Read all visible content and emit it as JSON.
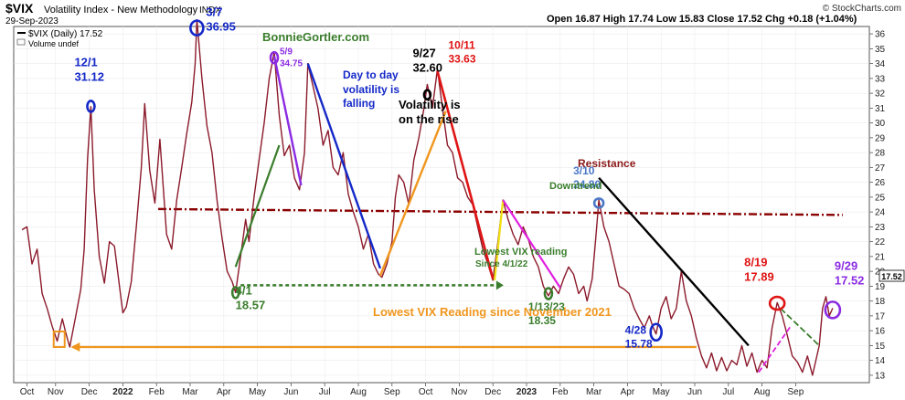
{
  "header": {
    "symbol": "$VIX",
    "name": "Volatility Index - New Methodology",
    "exchange": "INDX",
    "date": "29-Sep-2023",
    "ohlc_text": "Open 16.87  High 17.74  Low 15.83  Close 17.52  Chg +0.18 (+1.04%)",
    "copyright": "© StockCharts.com",
    "legend_main": "$VIX (Daily) 17.52",
    "legend_volume": "Volume undef",
    "watermark": "BonnieGortler.com",
    "last_value": "17.52"
  },
  "colors": {
    "price": "#8b1a2b",
    "price_dark": "#1a1a1a",
    "resistance": "#8b0000",
    "orange": "#f0961e",
    "green": "#3a7d2c",
    "blue": "#1428c8",
    "red": "#e01414",
    "purple": "#8b2be2",
    "magenta": "#e020e0",
    "steel": "#4a78c8",
    "black": "#000000",
    "yellow": "#f0e010"
  },
  "chart_data": {
    "type": "line",
    "title": "$VIX Volatility Index - New Methodology INDX",
    "ylim": [
      12.5,
      36.5
    ],
    "y_ticks": [
      13,
      14,
      15,
      16,
      17,
      18,
      19,
      20,
      21,
      22,
      23,
      24,
      25,
      26,
      27,
      28,
      29,
      30,
      31,
      32,
      33,
      34,
      35,
      36
    ],
    "x_domain": [
      0,
      25
    ],
    "x_ticks": [
      {
        "label": "Oct",
        "m": 0.15
      },
      {
        "label": "Nov",
        "m": 1
      },
      {
        "label": "Dec",
        "m": 2
      },
      {
        "label": "2022",
        "m": 3
      },
      {
        "label": "Feb",
        "m": 4
      },
      {
        "label": "Mar",
        "m": 5
      },
      {
        "label": "Apr",
        "m": 6
      },
      {
        "label": "May",
        "m": 7
      },
      {
        "label": "Jun",
        "m": 8
      },
      {
        "label": "Jul",
        "m": 9
      },
      {
        "label": "Aug",
        "m": 10
      },
      {
        "label": "Sep",
        "m": 11
      },
      {
        "label": "Oct",
        "m": 12
      },
      {
        "label": "Nov",
        "m": 13
      },
      {
        "label": "Dec",
        "m": 14
      },
      {
        "label": "2023",
        "m": 15
      },
      {
        "label": "Feb",
        "m": 16
      },
      {
        "label": "Mar",
        "m": 17
      },
      {
        "label": "Apr",
        "m": 18
      },
      {
        "label": "May",
        "m": 19
      },
      {
        "label": "Jun",
        "m": 20
      },
      {
        "label": "Jul",
        "m": 21
      },
      {
        "label": "Aug",
        "m": 22
      },
      {
        "label": "Sep",
        "m": 23
      }
    ],
    "series": [
      {
        "values": [
          [
            0.0,
            22.8
          ],
          [
            0.15,
            23.0
          ],
          [
            0.3,
            20.5
          ],
          [
            0.45,
            21.5
          ],
          [
            0.6,
            18.5
          ],
          [
            0.75,
            17.5
          ],
          [
            0.9,
            16.3
          ],
          [
            1.05,
            15.3
          ],
          [
            1.2,
            16.8
          ],
          [
            1.3,
            15.9
          ],
          [
            1.42,
            14.9
          ],
          [
            1.6,
            17.0
          ],
          [
            1.75,
            18.8
          ],
          [
            1.85,
            21.5
          ],
          [
            1.95,
            27.6
          ],
          [
            2.05,
            31.1
          ],
          [
            2.15,
            25.5
          ],
          [
            2.3,
            21.0
          ],
          [
            2.45,
            19.2
          ],
          [
            2.6,
            22.0
          ],
          [
            2.75,
            21.7
          ],
          [
            2.9,
            19.0
          ],
          [
            3.0,
            17.2
          ],
          [
            3.1,
            17.6
          ],
          [
            3.25,
            19.3
          ],
          [
            3.4,
            23.0
          ],
          [
            3.55,
            27.0
          ],
          [
            3.65,
            31.3
          ],
          [
            3.8,
            26.8
          ],
          [
            3.95,
            24.6
          ],
          [
            4.1,
            28.9
          ],
          [
            4.3,
            22.5
          ],
          [
            4.45,
            21.5
          ],
          [
            4.6,
            24.8
          ],
          [
            4.75,
            27.0
          ],
          [
            4.9,
            29.3
          ],
          [
            5.05,
            31.4
          ],
          [
            5.15,
            34.0
          ],
          [
            5.2,
            36.95
          ],
          [
            5.35,
            33.0
          ],
          [
            5.5,
            29.8
          ],
          [
            5.65,
            28.0
          ],
          [
            5.8,
            24.8
          ],
          [
            5.95,
            22.2
          ],
          [
            6.1,
            20.0
          ],
          [
            6.25,
            19.3
          ],
          [
            6.35,
            18.57
          ],
          [
            6.5,
            21.0
          ],
          [
            6.65,
            23.5
          ],
          [
            6.75,
            22.0
          ],
          [
            6.9,
            25.0
          ],
          [
            7.05,
            27.5
          ],
          [
            7.2,
            30.0
          ],
          [
            7.35,
            33.0
          ],
          [
            7.5,
            34.75
          ],
          [
            7.65,
            30.5
          ],
          [
            7.8,
            27.8
          ],
          [
            7.95,
            28.5
          ],
          [
            8.1,
            26.3
          ],
          [
            8.25,
            25.5
          ],
          [
            8.4,
            28.0
          ],
          [
            8.5,
            34.0
          ],
          [
            8.65,
            32.5
          ],
          [
            8.8,
            31.0
          ],
          [
            8.95,
            28.5
          ],
          [
            9.1,
            29.5
          ],
          [
            9.25,
            27.0
          ],
          [
            9.4,
            26.5
          ],
          [
            9.55,
            28.0
          ],
          [
            9.7,
            25.2
          ],
          [
            9.85,
            24.0
          ],
          [
            10.0,
            23.0
          ],
          [
            10.15,
            21.5
          ],
          [
            10.3,
            22.5
          ],
          [
            10.45,
            20.5
          ],
          [
            10.6,
            19.8
          ],
          [
            10.7,
            19.6
          ],
          [
            10.85,
            20.5
          ],
          [
            11.0,
            22.0
          ],
          [
            11.1,
            25.0
          ],
          [
            11.2,
            26.5
          ],
          [
            11.35,
            26.0
          ],
          [
            11.5,
            24.5
          ],
          [
            11.65,
            27.5
          ],
          [
            11.8,
            29.0
          ],
          [
            11.95,
            31.0
          ],
          [
            12.05,
            32.6
          ],
          [
            12.2,
            31.0
          ],
          [
            12.35,
            33.63
          ],
          [
            12.5,
            31.0
          ],
          [
            12.65,
            28.5
          ],
          [
            12.8,
            28.0
          ],
          [
            12.95,
            26.3
          ],
          [
            13.1,
            26.0
          ],
          [
            13.25,
            25.0
          ],
          [
            13.4,
            24.5
          ],
          [
            13.55,
            23.0
          ],
          [
            13.7,
            21.5
          ],
          [
            13.85,
            20.5
          ],
          [
            14.0,
            19.4
          ],
          [
            14.15,
            22.0
          ],
          [
            14.3,
            24.8
          ],
          [
            14.45,
            23.5
          ],
          [
            14.6,
            22.5
          ],
          [
            14.75,
            21.8
          ],
          [
            14.9,
            23.0
          ],
          [
            15.05,
            22.2
          ],
          [
            15.2,
            21.0
          ],
          [
            15.35,
            20.3
          ],
          [
            15.5,
            19.0
          ],
          [
            15.65,
            18.35
          ],
          [
            15.8,
            19.0
          ],
          [
            15.95,
            18.5
          ],
          [
            16.1,
            19.5
          ],
          [
            16.25,
            20.3
          ],
          [
            16.4,
            19.8
          ],
          [
            16.55,
            18.5
          ],
          [
            16.7,
            19.0
          ],
          [
            16.8,
            18.0
          ],
          [
            16.95,
            19.5
          ],
          [
            17.05,
            22.0
          ],
          [
            17.15,
            24.8
          ],
          [
            17.3,
            23.0
          ],
          [
            17.45,
            22.0
          ],
          [
            17.6,
            20.5
          ],
          [
            17.75,
            19.0
          ],
          [
            17.9,
            18.8
          ],
          [
            18.05,
            18.5
          ],
          [
            18.2,
            17.5
          ],
          [
            18.35,
            16.8
          ],
          [
            18.5,
            16.2
          ],
          [
            18.65,
            17.0
          ],
          [
            18.75,
            16.3
          ],
          [
            18.85,
            15.78
          ],
          [
            19.0,
            17.5
          ],
          [
            19.15,
            18.3
          ],
          [
            19.3,
            16.8
          ],
          [
            19.45,
            17.5
          ],
          [
            19.6,
            20.0
          ],
          [
            19.75,
            18.0
          ],
          [
            19.9,
            17.0
          ],
          [
            20.05,
            15.5
          ],
          [
            20.2,
            14.3
          ],
          [
            20.35,
            13.5
          ],
          [
            20.5,
            14.5
          ],
          [
            20.65,
            13.3
          ],
          [
            20.8,
            14.2
          ],
          [
            20.95,
            13.3
          ],
          [
            21.1,
            14.0
          ],
          [
            21.25,
            13.7
          ],
          [
            21.4,
            15.0
          ],
          [
            21.55,
            13.6
          ],
          [
            21.7,
            14.5
          ],
          [
            21.85,
            13.2
          ],
          [
            22.0,
            14.0
          ],
          [
            22.15,
            13.5
          ],
          [
            22.3,
            16.2
          ],
          [
            22.45,
            17.89
          ],
          [
            22.6,
            17.0
          ],
          [
            22.75,
            15.7
          ],
          [
            22.9,
            14.3
          ],
          [
            23.05,
            13.9
          ],
          [
            23.2,
            13.2
          ],
          [
            23.35,
            14.3
          ],
          [
            23.5,
            13.0
          ],
          [
            23.6,
            14.0
          ],
          [
            23.7,
            15.0
          ],
          [
            23.8,
            17.5
          ],
          [
            23.9,
            18.3
          ],
          [
            24.0,
            17.0
          ],
          [
            24.1,
            17.52
          ]
        ]
      }
    ],
    "resistance_line": {
      "label": "Resistance",
      "x1": 4.05,
      "y1": 24.2,
      "x2": 24.4,
      "y2": 23.8
    }
  },
  "annotations": [
    {
      "id": "ann-12-1",
      "lines": [
        "12/1",
        "31.12"
      ],
      "x": 2.05,
      "y": 31.12,
      "color": "#1428c8"
    },
    {
      "id": "ann-3-7",
      "lines": [
        "3/7",
        "36.95"
      ],
      "x": 5.2,
      "y": 36.95,
      "color": "#1428c8"
    },
    {
      "id": "ann-5-9",
      "lines": [
        "5/9",
        "34.75"
      ],
      "x": 7.5,
      "y": 34.75,
      "color": "#8b2be2"
    },
    {
      "id": "ann-4-1",
      "lines": [
        "4/1",
        "18.57"
      ],
      "x": 6.35,
      "y": 18.57,
      "color": "#3a7d2c"
    },
    {
      "id": "ann-9-27",
      "lines": [
        "9/27",
        "32.60"
      ],
      "x": 12.05,
      "y": 32.6,
      "color": "#000000"
    },
    {
      "id": "ann-10-11",
      "lines": [
        "10/11",
        "33.63"
      ],
      "x": 12.35,
      "y": 33.63,
      "color": "#e01414"
    },
    {
      "id": "ann-1-13-23",
      "lines": [
        "1/13/23",
        "18.35"
      ],
      "x": 15.65,
      "y": 18.35,
      "color": "#3a7d2c"
    },
    {
      "id": "ann-3-10",
      "lines": [
        "3/10",
        "24.80"
      ],
      "x": 17.15,
      "y": 24.8,
      "color": "#4a78c8"
    },
    {
      "id": "ann-4-28",
      "lines": [
        "4/28",
        "15.78"
      ],
      "x": 18.85,
      "y": 15.78,
      "color": "#1428c8"
    },
    {
      "id": "ann-8-19",
      "lines": [
        "8/19",
        "17.89"
      ],
      "x": 22.45,
      "y": 17.89,
      "color": "#e01414"
    },
    {
      "id": "ann-9-29",
      "lines": [
        "9/29",
        "17.52"
      ],
      "x": 24.1,
      "y": 17.52,
      "color": "#8b2be2"
    }
  ],
  "notes": {
    "day_to_day": [
      "Day to day",
      "volatility is",
      "falling"
    ],
    "volatility_rise": [
      "Volatility is",
      "on the rise"
    ],
    "downtrend": "Downtrend",
    "lowest_reading": "Lowest VIX reading",
    "since_4_1_22": "Since 4/1/22",
    "lowest_since_nov": "Lowest VIX Reading since November 2021",
    "resistance": "Resistance"
  }
}
